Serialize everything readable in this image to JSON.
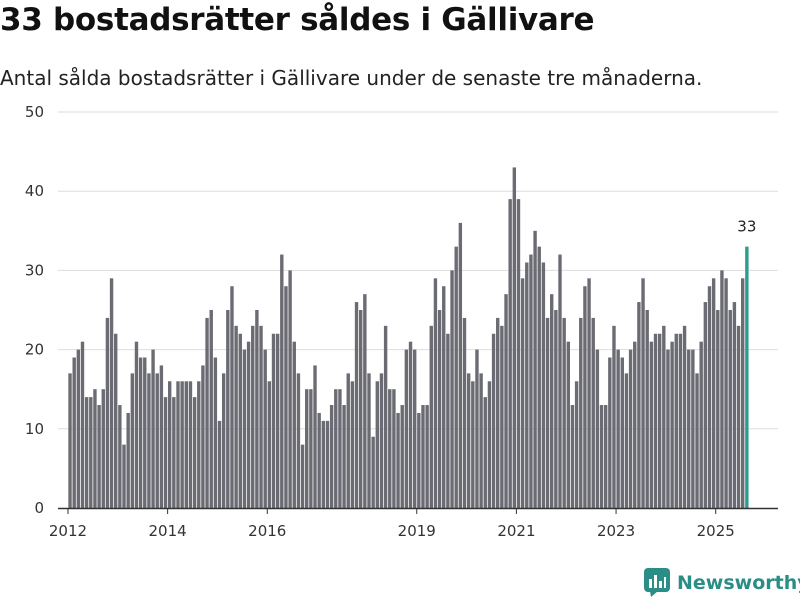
{
  "title": "33 bostadsrätter såldes i Gällivare",
  "subtitle": "Antal sålda bostadsrätter i Gällivare under de senaste tre månaderna.",
  "brand": {
    "name": "Newsworthy",
    "icon": "newsworthy-logo-icon",
    "color": "#2a8d86"
  },
  "colors": {
    "bar": "#6b6b73",
    "highlight": "#2a9d8f",
    "grid": "#dddddd",
    "axis": "#333333"
  },
  "chart_data": {
    "type": "bar",
    "title": "33 bostadsrätter såldes i Gällivare",
    "xlabel": "",
    "ylabel": "",
    "ylim": [
      0,
      50
    ],
    "yticks": [
      0,
      10,
      20,
      30,
      40,
      50
    ],
    "x_range": [
      2011.8,
      2026.25
    ],
    "xticks": [
      {
        "label": "2012",
        "value": 2012.0
      },
      {
        "label": "2014",
        "value": 2014.0
      },
      {
        "label": "2016",
        "value": 2016.0
      },
      {
        "label": "2019",
        "value": 2019.0
      },
      {
        "label": "2021",
        "value": 2021.0
      },
      {
        "label": "2023",
        "value": 2023.0
      },
      {
        "label": "2025",
        "value": 2025.0
      }
    ],
    "start_month": "2012-01",
    "interval": "month",
    "values": [
      17,
      19,
      20,
      21,
      14,
      14,
      15,
      13,
      15,
      24,
      29,
      22,
      13,
      8,
      12,
      17,
      21,
      19,
      19,
      17,
      20,
      17,
      18,
      14,
      16,
      14,
      16,
      16,
      16,
      16,
      14,
      16,
      18,
      24,
      25,
      19,
      11,
      17,
      25,
      28,
      23,
      22,
      20,
      21,
      23,
      25,
      23,
      20,
      16,
      22,
      22,
      32,
      28,
      30,
      21,
      17,
      8,
      15,
      15,
      18,
      12,
      11,
      11,
      13,
      15,
      15,
      13,
      17,
      16,
      26,
      25,
      27,
      17,
      9,
      16,
      17,
      23,
      15,
      15,
      12,
      13,
      20,
      21,
      20,
      12,
      13,
      13,
      23,
      29,
      25,
      28,
      22,
      30,
      33,
      36,
      24,
      17,
      16,
      20,
      17,
      14,
      16,
      22,
      24,
      23,
      27,
      39,
      43,
      39,
      29,
      31,
      32,
      35,
      33,
      31,
      24,
      27,
      25,
      32,
      24,
      21,
      13,
      16,
      24,
      28,
      29,
      24,
      20,
      13,
      13,
      19,
      23,
      20,
      19,
      17,
      20,
      21,
      26,
      29,
      25,
      21,
      22,
      22,
      23,
      20,
      21,
      22,
      22,
      23,
      20,
      20,
      17,
      21,
      26,
      28,
      29,
      25,
      30,
      29,
      25,
      26,
      23,
      29,
      33
    ],
    "highlight_last": 1,
    "highlight_label": "33"
  }
}
